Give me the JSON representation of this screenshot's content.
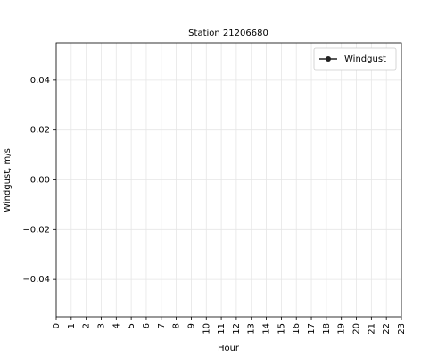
{
  "chart_data": {
    "type": "line",
    "title": "Station 21206680",
    "xlabel": "Hour",
    "ylabel": "Windgust, m/s",
    "x": [
      0,
      1,
      2,
      3,
      4,
      5,
      6,
      7,
      8,
      9,
      10,
      11,
      12,
      13,
      14,
      15,
      16,
      17,
      18,
      19,
      20,
      21,
      22,
      23
    ],
    "series": [
      {
        "name": "Windgust",
        "color": "#222222",
        "values": [
          null,
          null,
          null,
          null,
          null,
          null,
          null,
          null,
          null,
          null,
          null,
          null,
          null,
          null,
          null,
          null,
          null,
          null,
          null,
          null,
          null,
          null,
          null,
          null
        ]
      }
    ],
    "xlim": [
      0,
      23
    ],
    "xticks": [
      0,
      1,
      2,
      3,
      4,
      5,
      6,
      7,
      8,
      9,
      10,
      11,
      12,
      13,
      14,
      15,
      16,
      17,
      18,
      19,
      20,
      21,
      22,
      23
    ],
    "ylim": [
      -0.055,
      0.055
    ],
    "yticks": [
      {
        "value": -0.04,
        "label": "−0.04"
      },
      {
        "value": -0.02,
        "label": "−0.02"
      },
      {
        "value": 0,
        "label": "0.00"
      },
      0.02,
      0.04
    ],
    "grid": true,
    "legend": "upper right"
  }
}
